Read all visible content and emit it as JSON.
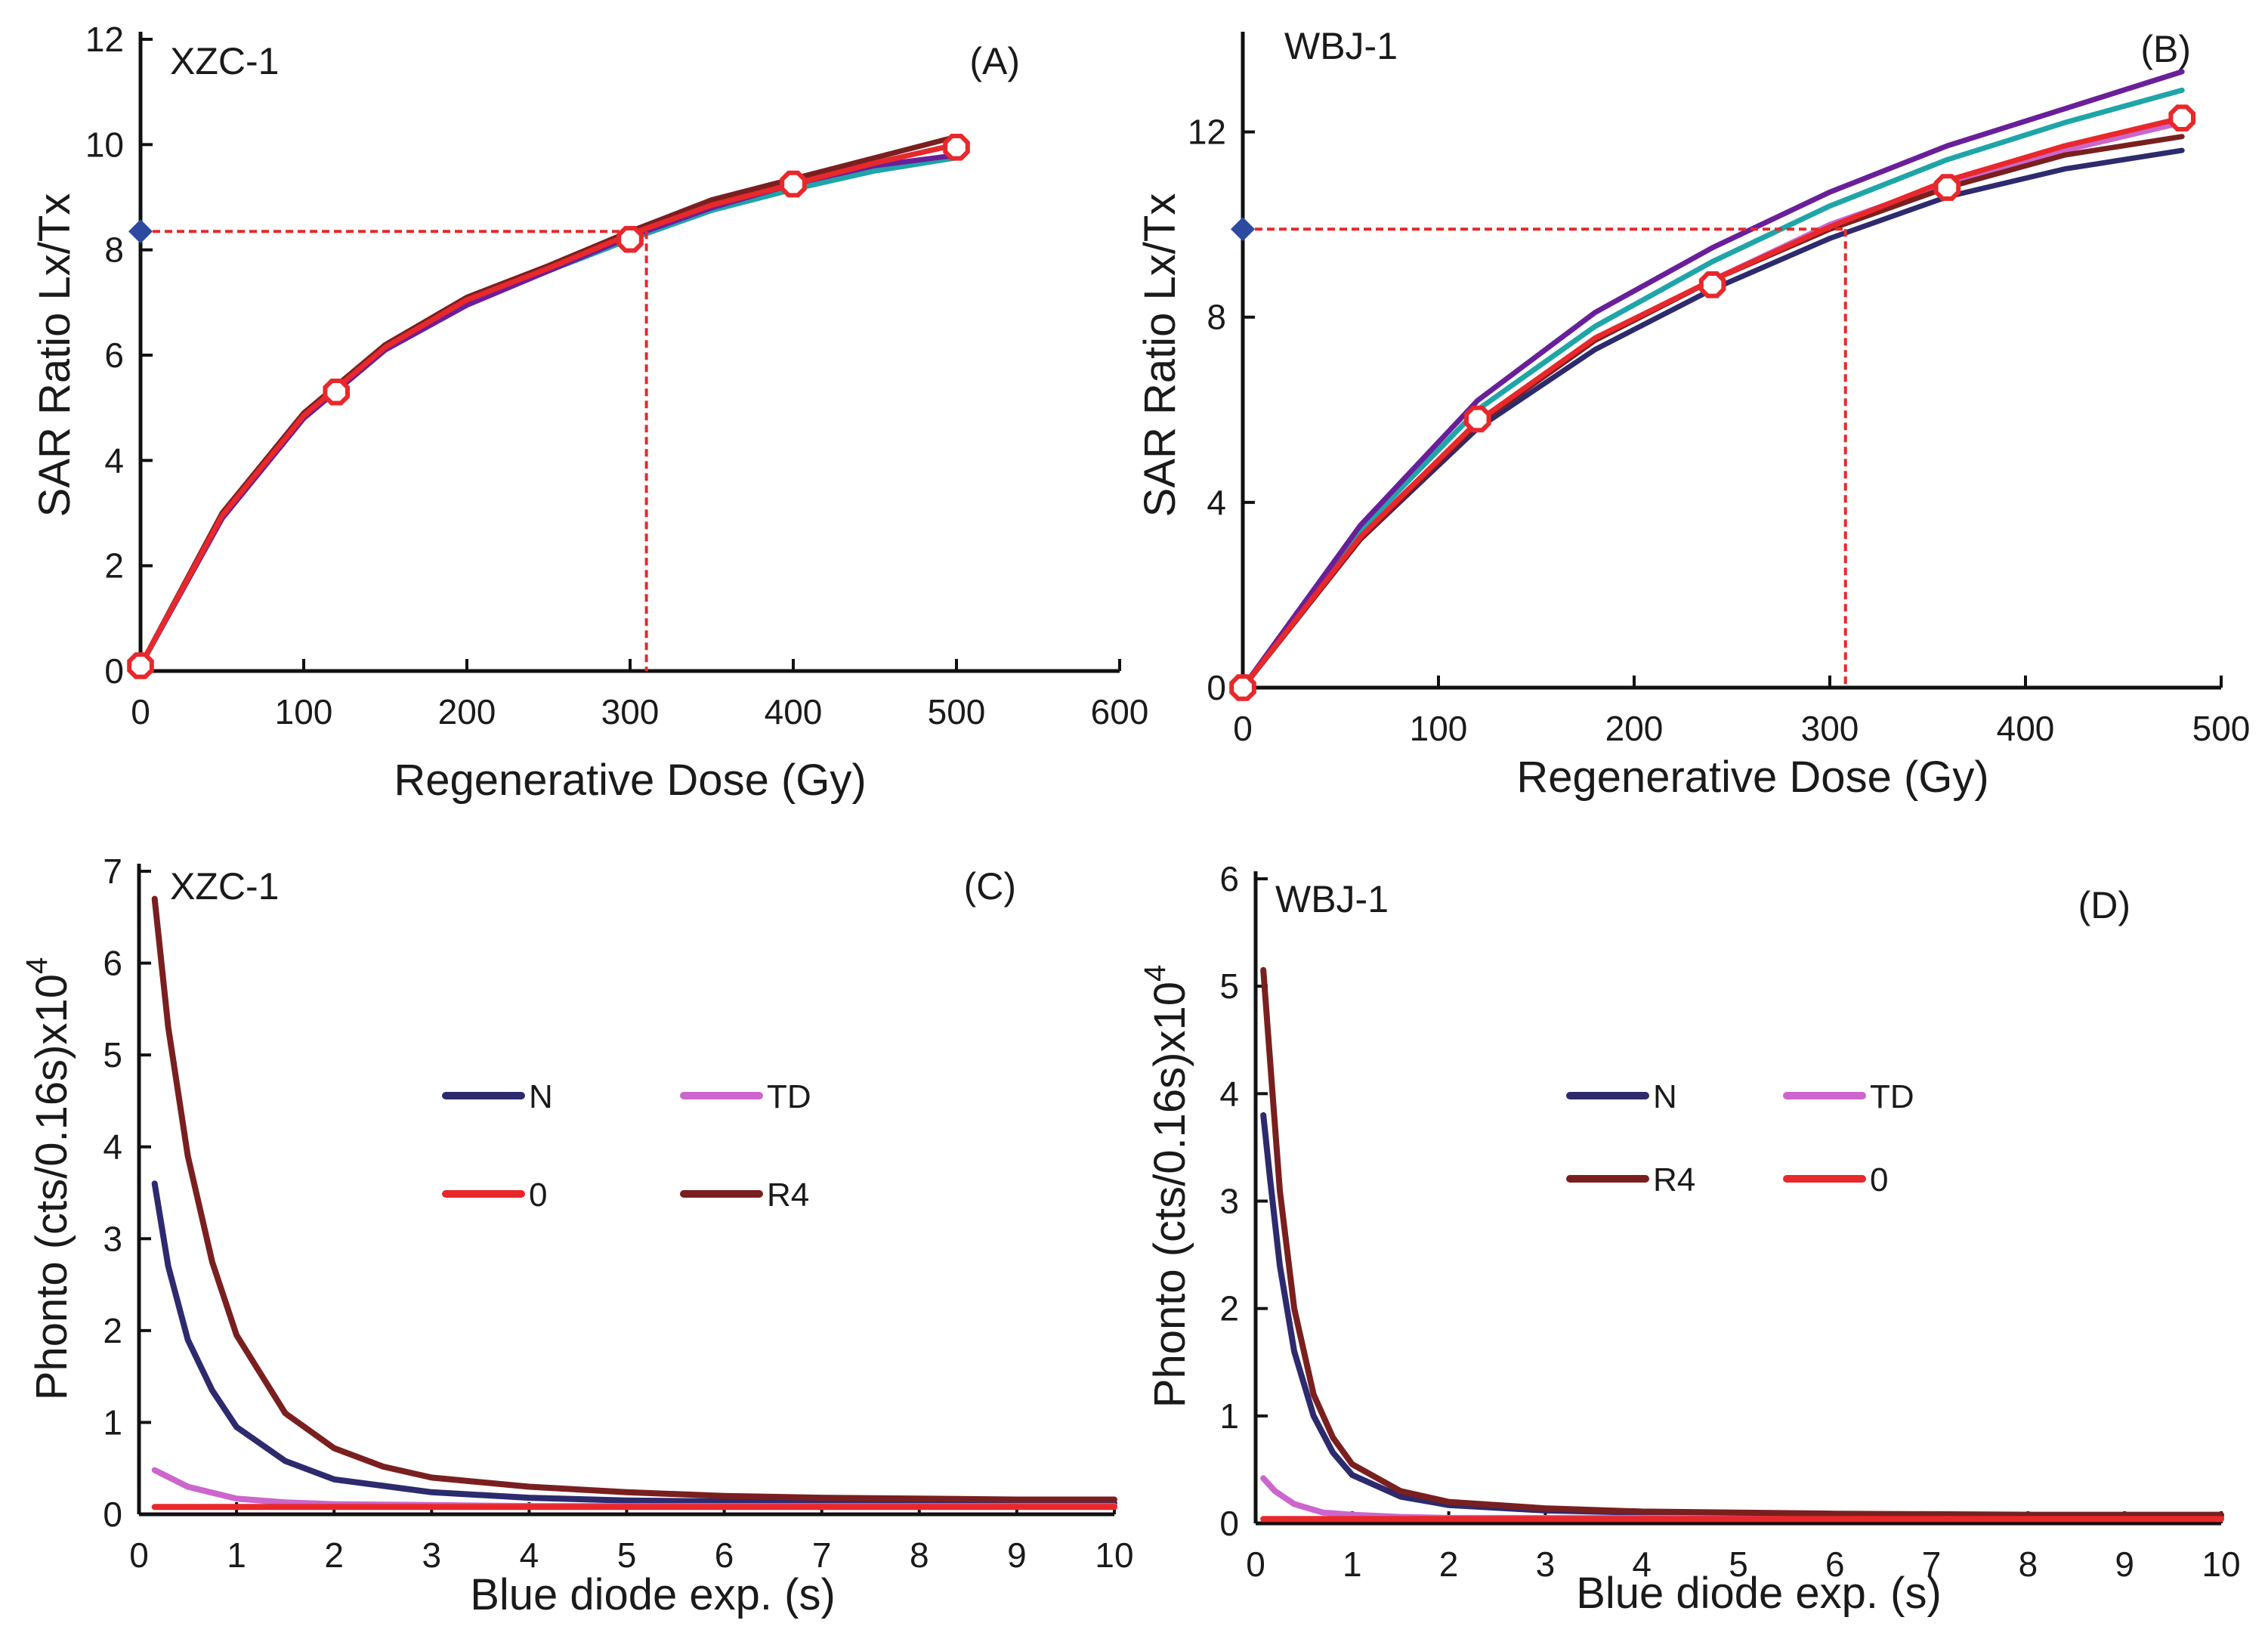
{
  "figure": {
    "colors": {
      "axis": "#111111",
      "guide": "#e8282b",
      "marker_fill": "#ffffff",
      "marker_stroke": "#e8282b",
      "de_marker": "#2b4aa0",
      "N": "#2d2a6e",
      "TD": "#cc66cc",
      "zero": "#e8282b",
      "R4": "#7a1f1f",
      "teal": "#1fa5a8",
      "purple": "#6a1f9a"
    }
  },
  "chart_data": [
    {
      "id": "A",
      "type": "line",
      "panel_label": "(A)",
      "sample": "XZC-1",
      "xlabel": "Regenerative Dose (Gy)",
      "ylabel": "SAR Ratio Lx/Tx",
      "xlim": [
        0,
        600
      ],
      "ylim": [
        0,
        12
      ],
      "xticks": [
        0,
        100,
        200,
        300,
        400,
        500,
        600
      ],
      "yticks": [
        0,
        2,
        4,
        6,
        8,
        10,
        12
      ],
      "series": [
        {
          "name": "curve-teal",
          "color_key": "teal",
          "x": [
            0,
            50,
            100,
            150,
            200,
            250,
            300,
            350,
            400,
            450,
            500
          ],
          "y": [
            0.1,
            2.9,
            4.8,
            6.1,
            7.0,
            7.6,
            8.2,
            8.75,
            9.15,
            9.5,
            9.75
          ]
        },
        {
          "name": "curve-purple",
          "color_key": "purple",
          "x": [
            0,
            50,
            100,
            150,
            200,
            250,
            300,
            350,
            400,
            450,
            500
          ],
          "y": [
            0.1,
            2.9,
            4.8,
            6.1,
            6.95,
            7.6,
            8.25,
            8.8,
            9.25,
            9.6,
            9.8
          ]
        },
        {
          "name": "curve-darkred",
          "color_key": "R4",
          "x": [
            0,
            50,
            100,
            150,
            200,
            250,
            300,
            350,
            400,
            450,
            500
          ],
          "y": [
            0.1,
            3.0,
            4.9,
            6.2,
            7.1,
            7.7,
            8.35,
            8.95,
            9.35,
            9.75,
            10.15
          ]
        },
        {
          "name": "curve-red",
          "color_key": "zero",
          "x": [
            0,
            50,
            100,
            150,
            200,
            250,
            300,
            350,
            400,
            450,
            500
          ],
          "y": [
            0.1,
            2.95,
            4.85,
            6.15,
            7.05,
            7.65,
            8.3,
            8.85,
            9.25,
            9.65,
            10.0
          ]
        }
      ],
      "points": {
        "x": [
          0,
          120,
          300,
          400,
          500
        ],
        "y": [
          0.1,
          5.3,
          8.2,
          9.25,
          9.95
        ]
      },
      "de": {
        "lx_tx": 8.35,
        "dose": 310
      }
    },
    {
      "id": "B",
      "type": "line",
      "panel_label": "(B)",
      "sample": "WBJ-1",
      "xlabel": "Regenerative Dose (Gy)",
      "ylabel": "SAR Ratio Lx/Tx",
      "xlim": [
        0,
        500
      ],
      "ylim": [
        0,
        14
      ],
      "xticks": [
        0,
        100,
        200,
        300,
        400,
        500
      ],
      "yticks": [
        0,
        4,
        8,
        12
      ],
      "series": [
        {
          "name": "curve-navy",
          "color_key": "N",
          "x": [
            0,
            60,
            120,
            180,
            240,
            300,
            360,
            420,
            480
          ],
          "y": [
            0,
            3.2,
            5.6,
            7.3,
            8.6,
            9.7,
            10.6,
            11.2,
            11.6
          ]
        },
        {
          "name": "curve-pink",
          "color_key": "TD",
          "x": [
            0,
            60,
            120,
            180,
            240,
            300,
            360,
            420,
            480
          ],
          "y": [
            0,
            3.3,
            5.7,
            7.5,
            8.8,
            10.0,
            10.9,
            11.6,
            12.2
          ]
        },
        {
          "name": "curve-teal",
          "color_key": "teal",
          "x": [
            0,
            60,
            120,
            180,
            240,
            300,
            360,
            420,
            480
          ],
          "y": [
            0,
            3.4,
            6.0,
            7.8,
            9.2,
            10.4,
            11.4,
            12.2,
            12.9
          ]
        },
        {
          "name": "curve-purple",
          "color_key": "purple",
          "x": [
            0,
            60,
            120,
            180,
            240,
            300,
            360,
            420,
            480
          ],
          "y": [
            0,
            3.5,
            6.2,
            8.1,
            9.5,
            10.7,
            11.7,
            12.5,
            13.3
          ]
        },
        {
          "name": "curve-darkred",
          "color_key": "R4",
          "x": [
            0,
            60,
            120,
            180,
            240,
            300,
            360,
            420,
            480
          ],
          "y": [
            0,
            3.2,
            5.7,
            7.5,
            8.8,
            9.9,
            10.8,
            11.5,
            11.9
          ]
        },
        {
          "name": "curve-red",
          "color_key": "zero",
          "x": [
            0,
            60,
            120,
            180,
            240,
            300,
            360,
            420,
            480
          ],
          "y": [
            0,
            3.25,
            5.75,
            7.55,
            8.8,
            9.95,
            10.95,
            11.7,
            12.3
          ]
        }
      ],
      "points": {
        "x": [
          0,
          120,
          240,
          360,
          480
        ],
        "y": [
          0,
          5.8,
          8.7,
          10.8,
          12.3
        ]
      },
      "de": {
        "lx_tx": 9.9,
        "dose": 308
      }
    },
    {
      "id": "C",
      "type": "line",
      "panel_label": "(C)",
      "sample": "XZC-1",
      "xlabel": "Blue diode exp. (s)",
      "ylabel": "Phonto (cts/0.16s)x10",
      "ylabel_exp": "4",
      "xlim": [
        0,
        10
      ],
      "ylim": [
        0,
        7
      ],
      "xticks": [
        0,
        1,
        2,
        3,
        4,
        5,
        6,
        7,
        8,
        9,
        10
      ],
      "yticks": [
        0,
        1,
        2,
        3,
        4,
        5,
        6,
        7
      ],
      "legend": [
        {
          "key": "N",
          "label": "N"
        },
        {
          "key": "TD",
          "label": "TD"
        },
        {
          "key": "zero",
          "label": "0"
        },
        {
          "key": "R4",
          "label": "R4"
        }
      ],
      "series": [
        {
          "name": "N",
          "color_key": "N",
          "x": [
            0.16,
            0.3,
            0.5,
            0.75,
            1.0,
            1.5,
            2.0,
            3.0,
            4.0,
            5.0,
            6.0,
            7.0,
            8.0,
            9.0,
            10.0
          ],
          "y": [
            3.6,
            2.7,
            1.9,
            1.35,
            0.95,
            0.58,
            0.38,
            0.24,
            0.18,
            0.15,
            0.14,
            0.13,
            0.12,
            0.12,
            0.12
          ]
        },
        {
          "name": "TD",
          "color_key": "TD",
          "x": [
            0.16,
            0.5,
            1.0,
            1.5,
            2.0,
            3.0,
            4.0,
            6.0,
            8.0,
            10.0
          ],
          "y": [
            0.48,
            0.3,
            0.17,
            0.13,
            0.11,
            0.1,
            0.09,
            0.09,
            0.09,
            0.09
          ]
        },
        {
          "name": "0",
          "color_key": "zero",
          "x": [
            0.16,
            1.0,
            2.0,
            4.0,
            6.0,
            8.0,
            10.0
          ],
          "y": [
            0.08,
            0.08,
            0.08,
            0.08,
            0.08,
            0.08,
            0.08
          ]
        },
        {
          "name": "R4",
          "color_key": "R4",
          "x": [
            0.16,
            0.3,
            0.5,
            0.75,
            1.0,
            1.5,
            2.0,
            2.5,
            3.0,
            4.0,
            5.0,
            6.0,
            7.0,
            8.0,
            9.0,
            10.0
          ],
          "y": [
            6.7,
            5.3,
            3.9,
            2.75,
            1.95,
            1.1,
            0.72,
            0.52,
            0.4,
            0.3,
            0.24,
            0.2,
            0.18,
            0.17,
            0.16,
            0.16
          ]
        }
      ]
    },
    {
      "id": "D",
      "type": "line",
      "panel_label": "(D)",
      "sample": "WBJ-1",
      "xlabel": "Blue diode exp. (s)",
      "ylabel": "Phonto (cts/0.16s)x10",
      "ylabel_exp": "4",
      "xlim": [
        0,
        10
      ],
      "ylim": [
        0,
        6
      ],
      "xticks": [
        0,
        1,
        2,
        3,
        4,
        5,
        6,
        7,
        8,
        9,
        10
      ],
      "yticks": [
        0,
        1,
        2,
        3,
        4,
        5,
        6
      ],
      "legend": [
        {
          "key": "N",
          "label": "N"
        },
        {
          "key": "TD",
          "label": "TD"
        },
        {
          "key": "R4",
          "label": "R4"
        },
        {
          "key": "zero",
          "label": "0"
        }
      ],
      "series": [
        {
          "name": "N",
          "color_key": "N",
          "x": [
            0.08,
            0.15,
            0.25,
            0.4,
            0.6,
            0.8,
            1.0,
            1.5,
            2.0,
            3.0,
            4.0,
            6.0,
            8.0,
            10.0
          ],
          "y": [
            3.8,
            3.2,
            2.4,
            1.6,
            1.0,
            0.66,
            0.45,
            0.25,
            0.17,
            0.12,
            0.1,
            0.08,
            0.07,
            0.07
          ]
        },
        {
          "name": "TD",
          "color_key": "TD",
          "x": [
            0.08,
            0.2,
            0.4,
            0.7,
            1.0,
            1.5,
            2.0,
            4.0,
            7.0,
            10.0
          ],
          "y": [
            0.42,
            0.3,
            0.18,
            0.1,
            0.08,
            0.06,
            0.05,
            0.05,
            0.05,
            0.05
          ]
        },
        {
          "name": "R4",
          "color_key": "R4",
          "x": [
            0.08,
            0.15,
            0.25,
            0.4,
            0.6,
            0.8,
            1.0,
            1.5,
            2.0,
            3.0,
            4.0,
            6.0,
            8.0,
            10.0
          ],
          "y": [
            5.15,
            4.3,
            3.1,
            2.0,
            1.2,
            0.8,
            0.55,
            0.3,
            0.2,
            0.14,
            0.11,
            0.09,
            0.08,
            0.08
          ]
        },
        {
          "name": "0",
          "color_key": "zero",
          "x": [
            0.08,
            1.0,
            2.0,
            4.0,
            6.0,
            8.0,
            10.0
          ],
          "y": [
            0.04,
            0.04,
            0.04,
            0.04,
            0.04,
            0.04,
            0.04
          ]
        }
      ]
    }
  ]
}
